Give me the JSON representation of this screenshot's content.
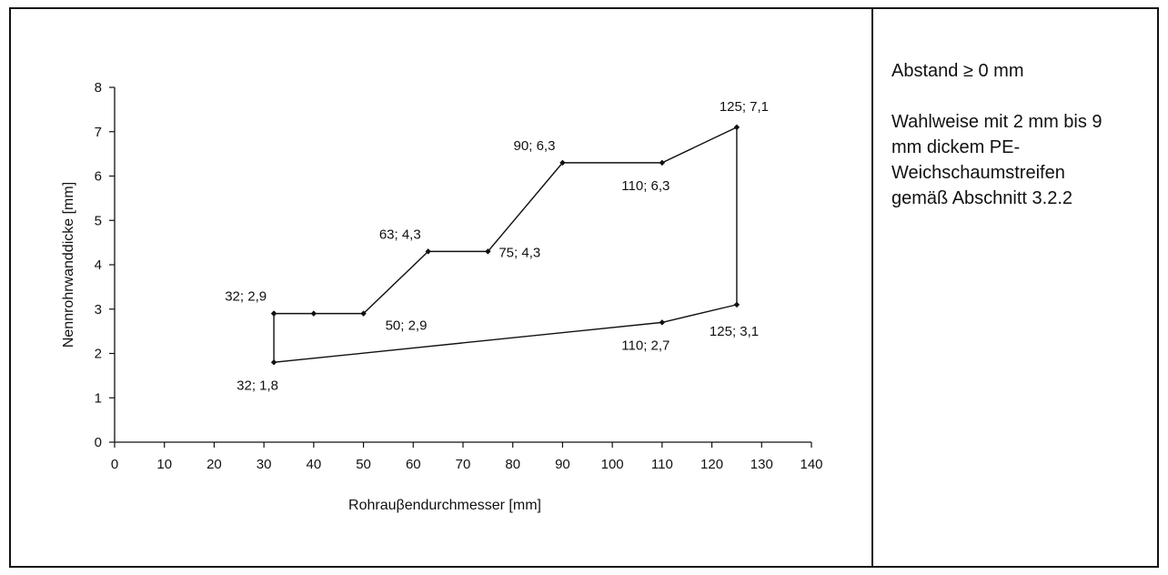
{
  "chart_data": {
    "type": "line",
    "xlabel": "Rohrauβendurchmesser [mm]",
    "ylabel": "Nennrohrwanddicke [mm]",
    "xlim": [
      0,
      140
    ],
    "ylim": [
      0,
      8
    ],
    "xticks": [
      0,
      10,
      20,
      30,
      40,
      50,
      60,
      70,
      80,
      90,
      100,
      110,
      120,
      130,
      140
    ],
    "yticks": [
      0,
      1,
      2,
      3,
      4,
      5,
      6,
      7,
      8
    ],
    "grid": false,
    "series": [
      {
        "color": "#111111",
        "x": [
          32,
          40,
          50,
          63,
          75,
          90,
          110,
          125,
          125,
          110,
          32,
          32
        ],
        "y": [
          2.9,
          2.9,
          2.9,
          4.3,
          4.3,
          6.3,
          6.3,
          7.1,
          3.1,
          2.7,
          1.8,
          2.9
        ]
      }
    ],
    "annotations": [
      {
        "text": "32; 2,9",
        "x": 32,
        "y": 2.9,
        "pos": "above-left"
      },
      {
        "text": "50; 2,9",
        "x": 50,
        "y": 2.9,
        "pos": "below-right"
      },
      {
        "text": "63; 4,3",
        "x": 63,
        "y": 4.3,
        "pos": "above-left"
      },
      {
        "text": "75; 4,3",
        "x": 75,
        "y": 4.3,
        "pos": "right"
      },
      {
        "text": "90; 6,3",
        "x": 90,
        "y": 6.3,
        "pos": "above-left"
      },
      {
        "text": "110; 6,3",
        "x": 110,
        "y": 6.3,
        "pos": "below"
      },
      {
        "text": "125; 7,1",
        "x": 125,
        "y": 7.1,
        "pos": "above"
      },
      {
        "text": "125; 3,1",
        "x": 125,
        "y": 3.1,
        "pos": "below-left"
      },
      {
        "text": "110; 2,7",
        "x": 110,
        "y": 2.7,
        "pos": "below"
      },
      {
        "text": "32; 1,8",
        "x": 32,
        "y": 1.8,
        "pos": "below"
      }
    ]
  },
  "notes": {
    "abstand": "Abstand ≥ 0 mm",
    "option": "Wahlweise mit 2 mm bis 9 mm dickem PE-Weichschaumstreifen gemäß Abschnitt 3.2.2"
  }
}
